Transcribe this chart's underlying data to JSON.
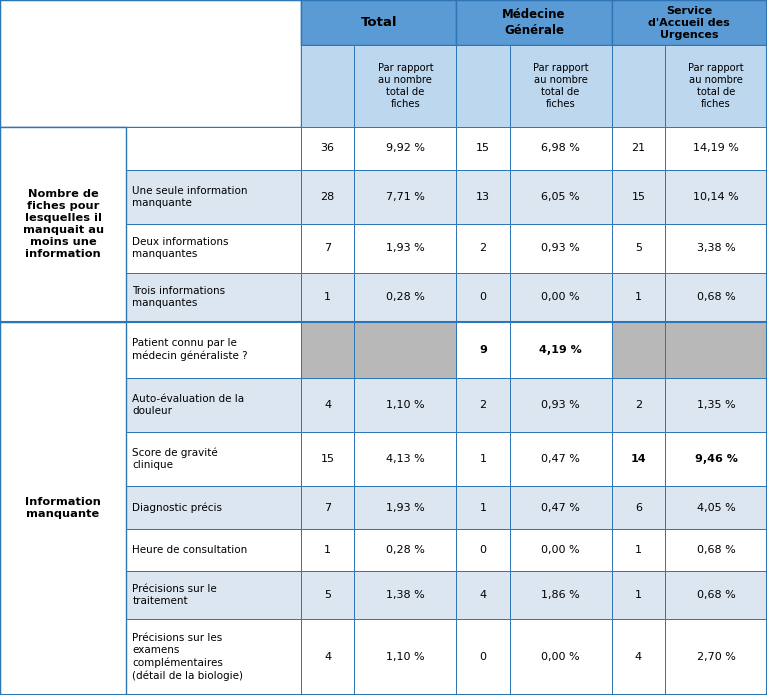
{
  "header_bg": "#5b9bd5",
  "header_bg_light": "#bdd7ee",
  "subheader_bg": "#bdd7ee",
  "gray_bg": "#b8b8b8",
  "border_color": "#2e75b6",
  "white": "#ffffff",
  "row_alt_bg": "#dce6f1",
  "left_group1_label": "Nombre de\nfiches pour\nlesquelles il\nmanquait au\nmoins une\ninformation",
  "left_group2_label": "Information\nmanquante",
  "rows": [
    {
      "label": "",
      "vals": [
        "36",
        "9,92 %",
        "15",
        "6,98 %",
        "21",
        "14,19 %"
      ],
      "bold": [
        false,
        false,
        false,
        false,
        false,
        false
      ],
      "gray": [
        false,
        false,
        false,
        false,
        false,
        false
      ],
      "group": 1,
      "alt": false
    },
    {
      "label": "Une seule information\nmanquante",
      "vals": [
        "28",
        "7,71 %",
        "13",
        "6,05 %",
        "15",
        "10,14 %"
      ],
      "bold": [
        false,
        false,
        false,
        false,
        false,
        false
      ],
      "gray": [
        false,
        false,
        false,
        false,
        false,
        false
      ],
      "group": 1,
      "alt": true
    },
    {
      "label": "Deux informations\nmanquantes",
      "vals": [
        "7",
        "1,93 %",
        "2",
        "0,93 %",
        "5",
        "3,38 %"
      ],
      "bold": [
        false,
        false,
        false,
        false,
        false,
        false
      ],
      "gray": [
        false,
        false,
        false,
        false,
        false,
        false
      ],
      "group": 1,
      "alt": false
    },
    {
      "label": "Trois informations\nmanquantes",
      "vals": [
        "1",
        "0,28 %",
        "0",
        "0,00 %",
        "1",
        "0,68 %"
      ],
      "bold": [
        false,
        false,
        false,
        false,
        false,
        false
      ],
      "gray": [
        false,
        false,
        false,
        false,
        false,
        false
      ],
      "group": 1,
      "alt": true
    },
    {
      "label": "Patient connu par le\nmédecin généraliste ?",
      "vals": [
        "",
        "",
        "9",
        "4,19 %",
        "",
        ""
      ],
      "bold": [
        false,
        false,
        true,
        true,
        false,
        false
      ],
      "gray": [
        true,
        true,
        false,
        false,
        true,
        true
      ],
      "group": 2,
      "alt": false
    },
    {
      "label": "Auto-évaluation de la\ndouleur",
      "vals": [
        "4",
        "1,10 %",
        "2",
        "0,93 %",
        "2",
        "1,35 %"
      ],
      "bold": [
        false,
        false,
        false,
        false,
        false,
        false
      ],
      "gray": [
        false,
        false,
        false,
        false,
        false,
        false
      ],
      "group": 2,
      "alt": true
    },
    {
      "label": "Score de gravité\nclinique",
      "vals": [
        "15",
        "4,13 %",
        "1",
        "0,47 %",
        "14",
        "9,46 %"
      ],
      "bold": [
        false,
        false,
        false,
        false,
        true,
        true
      ],
      "gray": [
        false,
        false,
        false,
        false,
        false,
        false
      ],
      "group": 2,
      "alt": false
    },
    {
      "label": "Diagnostic précis",
      "vals": [
        "7",
        "1,93 %",
        "1",
        "0,47 %",
        "6",
        "4,05 %"
      ],
      "bold": [
        false,
        false,
        false,
        false,
        false,
        false
      ],
      "gray": [
        false,
        false,
        false,
        false,
        false,
        false
      ],
      "group": 2,
      "alt": true
    },
    {
      "label": "Heure de consultation",
      "vals": [
        "1",
        "0,28 %",
        "0",
        "0,00 %",
        "1",
        "0,68 %"
      ],
      "bold": [
        false,
        false,
        false,
        false,
        false,
        false
      ],
      "gray": [
        false,
        false,
        false,
        false,
        false,
        false
      ],
      "group": 2,
      "alt": false
    },
    {
      "label": "Précisions sur le\ntraitement",
      "vals": [
        "5",
        "1,38 %",
        "4",
        "1,86 %",
        "1",
        "0,68 %"
      ],
      "bold": [
        false,
        false,
        false,
        false,
        false,
        false
      ],
      "gray": [
        false,
        false,
        false,
        false,
        false,
        false
      ],
      "group": 2,
      "alt": true
    },
    {
      "label": "Précisions sur les\nexamens\ncomplémentaires\n(détail de la biologie)",
      "vals": [
        "4",
        "1,10 %",
        "0",
        "0,00 %",
        "4",
        "2,70 %"
      ],
      "bold": [
        false,
        false,
        false,
        false,
        false,
        false
      ],
      "gray": [
        false,
        false,
        false,
        false,
        false,
        false
      ],
      "group": 2,
      "alt": false
    }
  ]
}
